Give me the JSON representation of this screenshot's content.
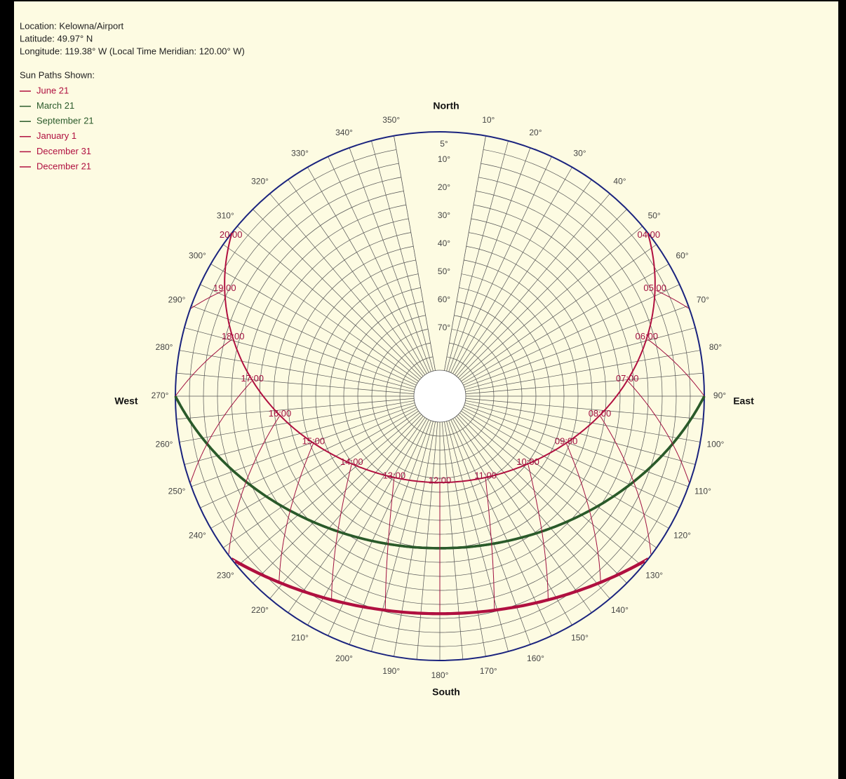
{
  "header": {
    "location": "Location: Kelowna/Airport",
    "latitude": "Latitude: 49.97° N",
    "longitude": "Longitude: 119.38° W (Local Time Meridian: 120.00° W)"
  },
  "legend": {
    "title": "Sun Paths Shown:",
    "items": [
      {
        "label": "June 21",
        "color": "#b01040"
      },
      {
        "label": "March 21",
        "color": "#2a5a2a"
      },
      {
        "label": "September 21",
        "color": "#2a5a2a"
      },
      {
        "label": "January 1",
        "color": "#b01040"
      },
      {
        "label": "December 31",
        "color": "#b01040"
      },
      {
        "label": "December 21",
        "color": "#b01040"
      }
    ]
  },
  "directions": {
    "north": "North",
    "south": "South",
    "east": "East",
    "west": "West"
  },
  "azimuth_labels": [
    "10°",
    "20°",
    "30°",
    "40°",
    "50°",
    "60°",
    "70°",
    "80°",
    "90°",
    "100°",
    "110°",
    "120°",
    "130°",
    "140°",
    "150°",
    "160°",
    "170°",
    "180°",
    "190°",
    "200°",
    "210°",
    "220°",
    "230°",
    "240°",
    "250°",
    "260°",
    "270°",
    "280°",
    "290°",
    "300°",
    "310°",
    "320°",
    "330°",
    "340°",
    "350°"
  ],
  "altitude_labels": [
    "5°",
    "10°",
    "20°",
    "30°",
    "40°",
    "50°",
    "60°",
    "70°"
  ],
  "hour_labels": [
    "04:00",
    "05:00",
    "06:00",
    "07:00",
    "08:00",
    "09:00",
    "10:00",
    "11:00",
    "12:00",
    "13:00",
    "14:00",
    "15:00",
    "16:00",
    "17:00",
    "18:00",
    "19:00",
    "20:00"
  ]
}
